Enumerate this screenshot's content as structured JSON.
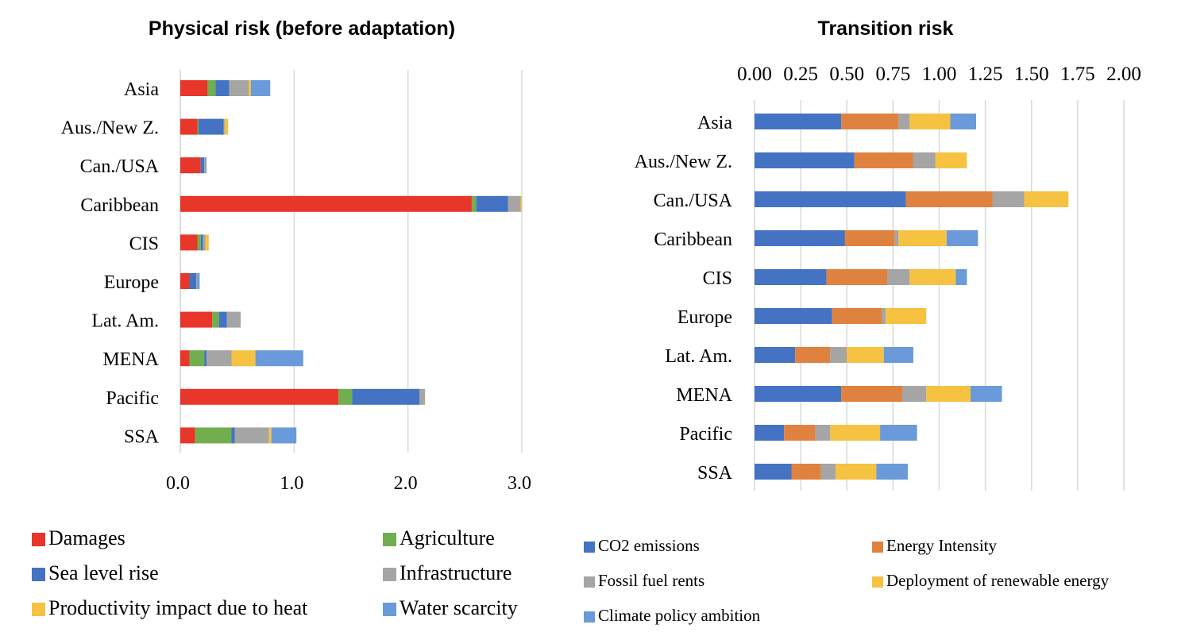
{
  "chart_data": [
    {
      "type": "bar",
      "orientation": "horizontal",
      "stacked": true,
      "title": "Physical risk (before adaptation)",
      "categories": [
        "Asia",
        "Aus./New Z.",
        "Can./USA",
        "Caribbean",
        "CIS",
        "Europe",
        "Lat. Am.",
        "MENA",
        "Pacific",
        "SSA"
      ],
      "xlim": [
        0,
        3
      ],
      "xticks": [
        "0.0",
        "1.0",
        "2.0",
        "3.0"
      ],
      "grid": true,
      "legend_position": "bottom",
      "series": [
        {
          "name": "Damages",
          "color": "#e8362a",
          "values": [
            0.24,
            0.15,
            0.18,
            2.56,
            0.15,
            0.08,
            0.28,
            0.08,
            1.39,
            0.13
          ]
        },
        {
          "name": "Agriculture",
          "color": "#72ad4f",
          "values": [
            0.07,
            0.01,
            0.0,
            0.04,
            0.03,
            0.0,
            0.06,
            0.13,
            0.12,
            0.32
          ]
        },
        {
          "name": "Sea level rise",
          "color": "#4473c4",
          "values": [
            0.12,
            0.22,
            0.03,
            0.28,
            0.02,
            0.06,
            0.07,
            0.02,
            0.59,
            0.03
          ]
        },
        {
          "name": "Infrastructure",
          "color": "#a5a5a5",
          "values": [
            0.17,
            0.01,
            0.01,
            0.11,
            0.02,
            0.01,
            0.12,
            0.22,
            0.05,
            0.3
          ]
        },
        {
          "name": "Productivity impact due to heat",
          "color": "#f6c242",
          "values": [
            0.02,
            0.03,
            0.0,
            0.01,
            0.03,
            0.0,
            0.0,
            0.21,
            0.0,
            0.02
          ]
        },
        {
          "name": "Water scarcity",
          "color": "#6a9ad9",
          "values": [
            0.17,
            0.0,
            0.01,
            0.0,
            0.0,
            0.02,
            0.0,
            0.42,
            0.0,
            0.22
          ]
        }
      ]
    },
    {
      "type": "bar",
      "orientation": "horizontal",
      "stacked": true,
      "title": "Transition risk",
      "categories": [
        "Asia",
        "Aus./New Z.",
        "Can./USA",
        "Caribbean",
        "CIS",
        "Europe",
        "Lat. Am.",
        "MENA",
        "Pacific",
        "SSA"
      ],
      "xlim": [
        0,
        2
      ],
      "xticks": [
        "0.00",
        "0.25",
        "0.50",
        "0.75",
        "1.00",
        "1.25",
        "1.50",
        "1.75",
        "2.00"
      ],
      "xaxis_position": "top",
      "grid": true,
      "legend_position": "bottom",
      "series": [
        {
          "name": "CO2 emissions",
          "color": "#4473c4",
          "values": [
            0.47,
            0.54,
            0.82,
            0.49,
            0.39,
            0.42,
            0.22,
            0.47,
            0.16,
            0.2
          ]
        },
        {
          "name": "Energy Intensity",
          "color": "#e0823f",
          "values": [
            0.31,
            0.32,
            0.47,
            0.27,
            0.33,
            0.27,
            0.19,
            0.33,
            0.17,
            0.16
          ]
        },
        {
          "name": "Fossil fuel rents",
          "color": "#a5a5a5",
          "values": [
            0.06,
            0.12,
            0.17,
            0.02,
            0.12,
            0.02,
            0.09,
            0.13,
            0.08,
            0.08
          ]
        },
        {
          "name": "Deployment of renewable energy",
          "color": "#f6c242",
          "values": [
            0.22,
            0.17,
            0.24,
            0.26,
            0.25,
            0.22,
            0.2,
            0.24,
            0.27,
            0.22
          ]
        },
        {
          "name": "Climate policy ambition",
          "color": "#6a9ad9",
          "values": [
            0.14,
            0.0,
            0.0,
            0.17,
            0.06,
            0.0,
            0.16,
            0.17,
            0.2,
            0.17
          ]
        }
      ]
    }
  ]
}
